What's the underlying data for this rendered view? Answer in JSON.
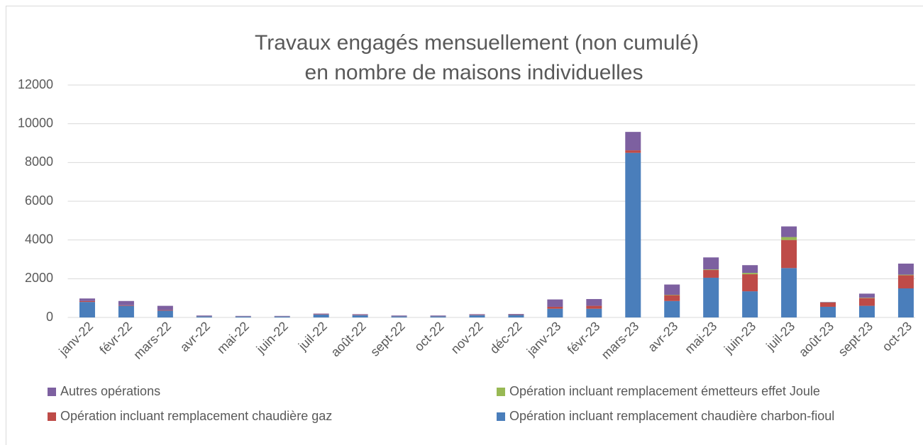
{
  "chart_data": {
    "type": "bar",
    "stacked": true,
    "title": [
      "Travaux engagés mensuellement (non cumulé)",
      "en nombre de maisons individuelles"
    ],
    "categories": [
      "janv-22",
      "févr-22",
      "mars-22",
      "avr-22",
      "mai-22",
      "juin-22",
      "juil-22",
      "août-22",
      "sept-22",
      "oct-22",
      "nov-22",
      "déc-22",
      "janv-23",
      "févr-23",
      "mars-23",
      "avr-23",
      "mai-23",
      "juin-23",
      "juil-23",
      "août-23",
      "sept-23",
      "oct-23"
    ],
    "series": [
      {
        "name": "Opération incluant remplacement chaudière charbon-fioul",
        "color": "#4a7ebb",
        "values": [
          800,
          600,
          350,
          60,
          50,
          50,
          150,
          120,
          60,
          60,
          120,
          130,
          450,
          450,
          8500,
          850,
          2050,
          1350,
          2550,
          550,
          600,
          1500
        ]
      },
      {
        "name": "Opération incluant remplacement chaudière gaz",
        "color": "#be4b48",
        "values": [
          50,
          30,
          30,
          10,
          10,
          10,
          20,
          20,
          10,
          10,
          20,
          20,
          100,
          150,
          130,
          300,
          400,
          880,
          1450,
          220,
          400,
          680
        ]
      },
      {
        "name": "Opération incluant remplacement émetteurs effet Joule",
        "color": "#98b954",
        "values": [
          0,
          0,
          0,
          0,
          0,
          0,
          0,
          0,
          0,
          0,
          0,
          0,
          0,
          0,
          0,
          20,
          30,
          70,
          150,
          10,
          20,
          30
        ]
      },
      {
        "name": "Autres opérations",
        "color": "#7d60a0",
        "values": [
          130,
          220,
          220,
          30,
          20,
          20,
          30,
          30,
          30,
          30,
          30,
          30,
          380,
          350,
          950,
          530,
          620,
          400,
          550,
          20,
          210,
          570
        ]
      }
    ],
    "ylim": [
      0,
      12000
    ],
    "yticks": [
      0,
      2000,
      4000,
      6000,
      8000,
      10000,
      12000
    ],
    "grid": true
  }
}
